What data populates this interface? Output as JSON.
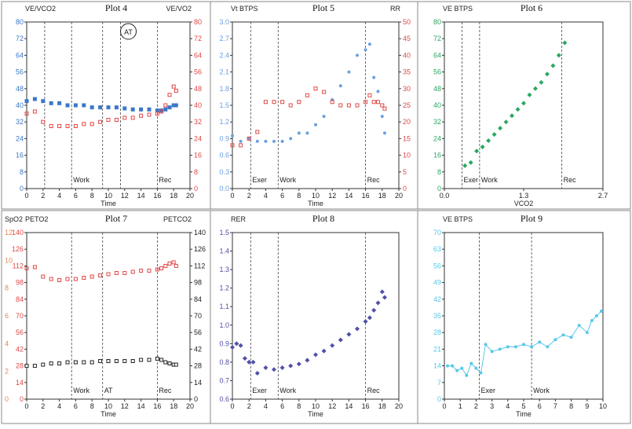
{
  "chart_data": [
    {
      "title": "Plot 4",
      "type": "scatter",
      "xlabel": "Time",
      "xlim": [
        0,
        20
      ],
      "xticks": [
        "0",
        "2",
        "4",
        "6",
        "8",
        "10",
        "12",
        "14",
        "16",
        "18",
        "20"
      ],
      "left_axis": {
        "label": "VE/VCO2",
        "color": "#3a78c8",
        "lim": [
          0,
          80
        ],
        "ticks": [
          "0",
          "8",
          "16",
          "24",
          "32",
          "40",
          "48",
          "56",
          "64",
          "72",
          "80"
        ]
      },
      "right_axis": {
        "label": "VE/VO2",
        "color": "#e04848",
        "lim": [
          0,
          80
        ],
        "ticks": [
          "0",
          "8",
          "16",
          "24",
          "32",
          "40",
          "48",
          "56",
          "64",
          "72",
          "80"
        ]
      },
      "markers": [
        {
          "x": 2.2,
          "label": ""
        },
        {
          "x": 5.5,
          "label": "Work"
        },
        {
          "x": 9.3,
          "label": ""
        },
        {
          "x": 11.5,
          "label": ""
        },
        {
          "x": 16.0,
          "label": "Rec"
        }
      ],
      "annotations": [
        "AT"
      ],
      "series": [
        {
          "axis": "left",
          "color": "#3a78c8",
          "style": "square",
          "x": [
            0,
            1,
            2,
            3,
            4,
            5,
            6,
            7,
            8,
            9,
            10,
            11,
            12,
            13,
            14,
            15,
            16,
            16.5,
            17,
            17.5,
            18,
            18.3
          ],
          "y": [
            42,
            43,
            42,
            41,
            41,
            40,
            40,
            40,
            39,
            39,
            39,
            39,
            38.5,
            38,
            38,
            38,
            37.5,
            37.5,
            38,
            39,
            40,
            40
          ]
        },
        {
          "axis": "right",
          "color": "#e04848",
          "style": "open",
          "x": [
            0,
            1,
            2,
            3,
            4,
            5,
            6,
            7,
            8,
            9,
            10,
            11,
            12,
            13,
            14,
            15,
            16,
            16.5,
            17,
            17.5,
            18,
            18.3
          ],
          "y": [
            36,
            37,
            32,
            30,
            30,
            30,
            30,
            31,
            31,
            32,
            33,
            33,
            34,
            34,
            35,
            35.5,
            36,
            37,
            40,
            45,
            49,
            47
          ]
        }
      ]
    },
    {
      "title": "Plot 5",
      "type": "scatter",
      "xlabel": "Time",
      "xlim": [
        0,
        20
      ],
      "xticks": [
        "0",
        "2",
        "4",
        "6",
        "8",
        "10",
        "12",
        "14",
        "16",
        "18",
        "20"
      ],
      "left_axis": {
        "label": "Vt BTPS",
        "color": "#6aa0e0",
        "lim": [
          0,
          3.0
        ],
        "ticks": [
          "0.0",
          "0.3",
          "0.6",
          "0.9",
          "1.2",
          "1.5",
          "1.8",
          "2.1",
          "2.4",
          "2.7",
          "3.0"
        ]
      },
      "right_axis": {
        "label": "RR",
        "color": "#e04848",
        "lim": [
          0,
          50
        ],
        "ticks": [
          "0",
          "5",
          "10",
          "15",
          "20",
          "25",
          "30",
          "35",
          "40",
          "45",
          "50"
        ]
      },
      "markers": [
        {
          "x": 2.2,
          "label": "Exer"
        },
        {
          "x": 5.5,
          "label": "Work"
        },
        {
          "x": 16.0,
          "label": "Rec"
        }
      ],
      "series": [
        {
          "axis": "left",
          "color": "#6aa0e0",
          "style": "dot",
          "x": [
            0,
            1,
            2,
            3,
            4,
            5,
            6,
            7,
            8,
            9,
            10,
            11,
            12,
            13,
            14,
            15,
            16,
            16.5,
            17,
            17.5,
            18,
            18.3
          ],
          "y": [
            0.95,
            0.85,
            0.9,
            0.85,
            0.85,
            0.85,
            0.85,
            0.9,
            1.0,
            1.0,
            1.15,
            1.3,
            1.6,
            1.85,
            2.1,
            2.4,
            2.5,
            2.6,
            2.0,
            1.75,
            1.3,
            1.0
          ]
        },
        {
          "axis": "right",
          "color": "#e04848",
          "style": "open",
          "x": [
            0,
            1,
            2,
            3,
            4,
            5,
            6,
            7,
            8,
            9,
            10,
            11,
            12,
            13,
            14,
            15,
            16,
            16.5,
            17,
            17.5,
            18,
            18.3
          ],
          "y": [
            13,
            13,
            15,
            17,
            26,
            26,
            26,
            25,
            26,
            28,
            30,
            29,
            26,
            25,
            25,
            25,
            26,
            28,
            26,
            26,
            25,
            24
          ]
        }
      ]
    },
    {
      "title": "Plot 6",
      "type": "scatter",
      "xlabel": "VCO2",
      "xlim": [
        0,
        2.7
      ],
      "xticks": [
        "0.0",
        "1.3",
        "2.7"
      ],
      "left_axis": {
        "label": "VE BTPS",
        "color": "#2aa860",
        "lim": [
          0,
          80
        ],
        "ticks": [
          "0",
          "8",
          "16",
          "24",
          "32",
          "40",
          "48",
          "56",
          "64",
          "72",
          "80"
        ]
      },
      "markers": [
        {
          "x": 0.3,
          "label": "Exer"
        },
        {
          "x": 0.6,
          "label": "Work"
        },
        {
          "x": 2.0,
          "label": "Rec"
        }
      ],
      "series": [
        {
          "axis": "left",
          "color": "#2aa860",
          "style": "diamond",
          "x": [
            0.35,
            0.45,
            0.55,
            0.65,
            0.75,
            0.85,
            0.95,
            1.05,
            1.15,
            1.25,
            1.35,
            1.45,
            1.55,
            1.65,
            1.75,
            1.85,
            1.95,
            2.05
          ],
          "y": [
            11,
            12.5,
            18,
            20,
            23,
            26,
            29,
            32,
            35,
            38,
            41,
            45,
            48,
            51,
            55,
            59,
            64,
            70
          ]
        }
      ]
    },
    {
      "title": "Plot 7",
      "type": "scatter",
      "xlabel": "Time",
      "xlim": [
        0,
        20
      ],
      "xticks": [
        "0",
        "2",
        "4",
        "6",
        "8",
        "10",
        "12",
        "14",
        "16",
        "18",
        "20"
      ],
      "left_axis": {
        "label": "PETO2",
        "color": "#e04848",
        "lim": [
          0,
          140
        ],
        "ticks": [
          "0",
          "14",
          "28",
          "42",
          "56",
          "70",
          "84",
          "98",
          "112",
          "126",
          "140"
        ]
      },
      "left_axis2": {
        "label": "SpO2",
        "color": "#e88858",
        "lim": [
          0,
          12
        ],
        "ticks": [
          "0",
          "2",
          "4",
          "6",
          "8",
          "10",
          "12"
        ]
      },
      "right_axis": {
        "label": "PETCO2",
        "color": "#222222",
        "lim": [
          0,
          140
        ],
        "ticks": [
          "0",
          "14",
          "28",
          "42",
          "56",
          "70",
          "84",
          "98",
          "112",
          "126",
          "140"
        ]
      },
      "markers": [
        {
          "x": 5.5,
          "label": "Work"
        },
        {
          "x": 9.3,
          "label": "AT"
        },
        {
          "x": 16.0,
          "label": "Rec"
        }
      ],
      "series": [
        {
          "axis": "left",
          "color": "#e04848",
          "style": "open",
          "x": [
            0,
            1,
            2,
            3,
            4,
            5,
            6,
            7,
            8,
            9,
            10,
            11,
            12,
            13,
            14,
            15,
            16,
            16.5,
            17,
            17.5,
            18,
            18.3
          ],
          "y": [
            110,
            111,
            103,
            101,
            100,
            101,
            101,
            102,
            103,
            104,
            105,
            106,
            106,
            107,
            108,
            108,
            109,
            110,
            112,
            114,
            115,
            112
          ]
        },
        {
          "axis": "right",
          "color": "#222222",
          "style": "square-open",
          "x": [
            0,
            1,
            2,
            3,
            4,
            5,
            6,
            7,
            8,
            9,
            10,
            11,
            12,
            13,
            14,
            15,
            16,
            16.5,
            17,
            17.5,
            18,
            18.3
          ],
          "y": [
            28,
            28,
            29,
            30,
            30,
            31,
            31,
            31,
            31,
            32,
            32,
            32,
            32,
            32,
            33,
            33,
            34,
            33,
            31,
            30,
            29,
            29
          ]
        }
      ]
    },
    {
      "title": "Plot 8",
      "type": "scatter",
      "xlabel": "Time",
      "xlim": [
        0,
        20
      ],
      "xticks": [
        "0",
        "2",
        "4",
        "6",
        "8",
        "10",
        "12",
        "14",
        "16",
        "18",
        "20"
      ],
      "left_axis": {
        "label": "RER",
        "color": "#5050a8",
        "lim": [
          0.6,
          1.5
        ],
        "ticks": [
          "0.6",
          "0.7",
          "0.8",
          "0.9",
          "1.0",
          "1.1",
          "1.2",
          "1.3",
          "1.4",
          "1.5"
        ]
      },
      "markers": [
        {
          "x": 2.2,
          "label": "Exer"
        },
        {
          "x": 5.5,
          "label": "Work"
        },
        {
          "x": 16.0,
          "label": "Rec"
        }
      ],
      "series": [
        {
          "axis": "left",
          "color": "#5050a8",
          "style": "diamond",
          "x": [
            0,
            0.5,
            1,
            1.5,
            2,
            2.5,
            3,
            4,
            5,
            6,
            7,
            8,
            9,
            10,
            11,
            12,
            13,
            14,
            15,
            16,
            16.5,
            17,
            17.5,
            18,
            18.3
          ],
          "y": [
            0.88,
            0.9,
            0.89,
            0.82,
            0.8,
            0.8,
            0.74,
            0.77,
            0.76,
            0.77,
            0.78,
            0.79,
            0.81,
            0.84,
            0.86,
            0.89,
            0.92,
            0.95,
            0.98,
            1.02,
            1.04,
            1.08,
            1.12,
            1.18,
            1.15
          ]
        }
      ]
    },
    {
      "title": "Plot 9",
      "type": "line",
      "xlabel": "Time",
      "xlim": [
        0,
        10
      ],
      "xticks": [
        "0",
        "1",
        "2",
        "3",
        "4",
        "5",
        "6",
        "7",
        "8",
        "9",
        "10"
      ],
      "left_axis": {
        "label": "VE BTPS",
        "color": "#58c8e8",
        "lim": [
          0,
          70
        ],
        "ticks": [
          "0",
          "7",
          "14",
          "21",
          "28",
          "35",
          "42",
          "49",
          "56",
          "63",
          "70"
        ]
      },
      "markers": [
        {
          "x": 2.2,
          "label": "Exer"
        },
        {
          "x": 5.5,
          "label": "Work"
        }
      ],
      "series": [
        {
          "axis": "left",
          "color": "#58c8e8",
          "style": "line-dot",
          "x": [
            0.2,
            0.5,
            0.8,
            1.1,
            1.4,
            1.7,
            2.0,
            2.3,
            2.6,
            3.0,
            3.5,
            4.0,
            4.5,
            5.0,
            5.5,
            6.0,
            6.5,
            7.0,
            7.5,
            8.0,
            8.5,
            9.0,
            9.3,
            9.6,
            9.9
          ],
          "y": [
            14,
            14,
            12,
            13,
            10,
            15,
            13,
            11,
            23,
            20,
            21,
            22,
            22,
            23,
            22,
            24,
            22,
            25,
            27,
            26,
            31,
            28,
            33,
            35,
            37
          ]
        }
      ]
    }
  ]
}
